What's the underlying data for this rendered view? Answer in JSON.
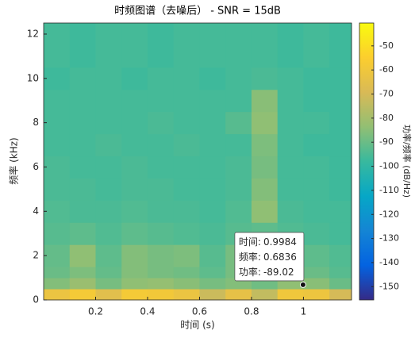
{
  "chart_data": {
    "type": "heatmap",
    "title": "时频图谱（去噪后） - SNR = 15dB",
    "xlabel": "时间 (s)",
    "ylabel": "频率 (kHz)",
    "colorbar_label": "功率/频率 (dB/Hz)",
    "colormap": "parula",
    "x_edges": [
      0,
      0.1,
      0.2,
      0.3,
      0.4,
      0.5,
      0.6,
      0.7,
      0.8,
      0.9,
      1.0,
      1.1,
      1.185
    ],
    "y_edges": [
      0,
      0.5,
      1,
      1.5,
      2.5,
      3.5,
      4.5,
      5.5,
      6.5,
      7.5,
      8.5,
      9.5,
      10.5,
      12.5
    ],
    "values": [
      [
        -62,
        -58,
        -66,
        -58,
        -59,
        -62,
        -72,
        -64,
        -74,
        -60,
        -61,
        -70
      ],
      [
        -86,
        -82,
        -88,
        -84,
        -83,
        -85,
        -88,
        -86,
        -89,
        -84,
        -85,
        -90
      ],
      [
        -90,
        -87,
        -91,
        -86,
        -88,
        -89,
        -92,
        -88,
        -91,
        -89,
        -90,
        -93
      ],
      [
        -91,
        -84,
        -92,
        -86,
        -88,
        -87,
        -93,
        -88,
        -92,
        -91,
        -92,
        -94
      ],
      [
        -93,
        -92,
        -94,
        -92,
        -93,
        -94,
        -95,
        -93,
        -92,
        -94,
        -95,
        -96
      ],
      [
        -94,
        -95,
        -95,
        -94,
        -95,
        -95,
        -96,
        -94,
        -84,
        -95,
        -96,
        -96
      ],
      [
        -95,
        -95,
        -96,
        -95,
        -95,
        -96,
        -96,
        -95,
        -86,
        -96,
        -96,
        -97
      ],
      [
        -95,
        -96,
        -96,
        -95,
        -96,
        -96,
        -96,
        -95,
        -88,
        -96,
        -96,
        -97
      ],
      [
        -96,
        -96,
        -95,
        -96,
        -96,
        -95,
        -96,
        -96,
        -87,
        -96,
        -97,
        -97
      ],
      [
        -96,
        -96,
        -96,
        -96,
        -95,
        -96,
        -96,
        -93,
        -84,
        -96,
        -96,
        -97
      ],
      [
        -96,
        -96,
        -96,
        -96,
        -96,
        -96,
        -96,
        -96,
        -85,
        -96,
        -97,
        -97
      ],
      [
        -97,
        -96,
        -96,
        -97,
        -96,
        -96,
        -97,
        -96,
        -95,
        -96,
        -97,
        -97
      ],
      [
        -96,
        -97,
        -96,
        -96,
        -97,
        -96,
        -96,
        -96,
        -96,
        -97,
        -96,
        -97
      ]
    ],
    "xlim": [
      0,
      1.185
    ],
    "xticks": [
      0.2,
      0.4,
      0.6,
      0.8,
      1
    ],
    "ylim": [
      0,
      12.5
    ],
    "yticks": [
      0,
      2,
      4,
      6,
      8,
      10,
      12
    ],
    "clim": [
      -155.5,
      -40.5
    ],
    "cticks": [
      -50,
      -60,
      -70,
      -80,
      -90,
      -100,
      -110,
      -120,
      -130,
      -140,
      -150
    ],
    "datatip": {
      "labels": [
        "时间:",
        "频率:",
        "功率:"
      ],
      "x": 0.9984,
      "y": 0.6836,
      "z": -89.02
    }
  }
}
